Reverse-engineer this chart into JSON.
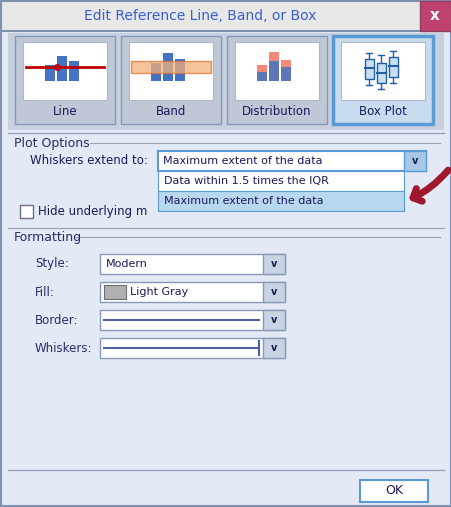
{
  "title": "Edit Reference Line, Band, or Box",
  "title_color": "#3A5FCD",
  "bg_color": "#D6DFF0",
  "dialog_bg": "#E4EAF5",
  "tab_labels": [
    "Line",
    "Band",
    "Distribution",
    "Box Plot"
  ],
  "active_tab": "Box Plot",
  "section_plot_options": "Plot Options",
  "label_whiskers": "Whiskers extend to:",
  "dropdown_whiskers_value": "Maximum extent of the data",
  "label_hide": "Hide underlying m",
  "dropdown_items": [
    "Data within 1.5 times the IQR",
    "Maximum extent of the data"
  ],
  "section_formatting": "Formatting",
  "format_rows": [
    {
      "label": "Style:",
      "value": "Modern",
      "has_color": false
    },
    {
      "label": "Fill:",
      "value": "Light Gray",
      "has_color": true
    },
    {
      "label": "Border:",
      "value": "",
      "has_color": false
    },
    {
      "label": "Whiskers:",
      "value": "",
      "has_color": false,
      "has_tick": true
    }
  ],
  "ok_button": "OK",
  "close_x": "x",
  "arrow_color": "#A01830",
  "close_btn_color": "#C04070",
  "tab_active_border": "#5B9BD5",
  "tab_active_bg": "#C8DCF0",
  "tab_inactive_bg": "#C0C8D8",
  "tab_icon_bg": "#FFFFFF",
  "dropdown_highlight_color": "#B8D8F0",
  "text_color": "#1A1A5A",
  "label_color": "#2A2A6A",
  "separator_color": "#9AA0B8"
}
